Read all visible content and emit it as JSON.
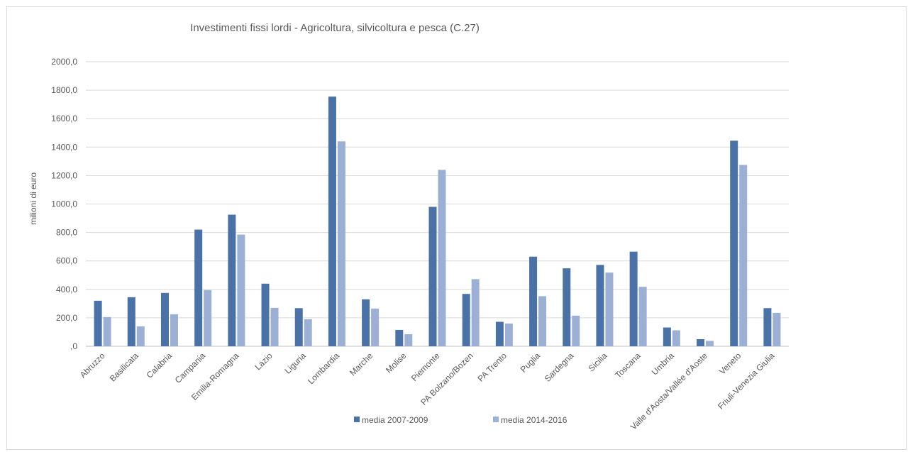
{
  "chart_data": {
    "type": "bar",
    "title": "Investimenti fissi lordi - Agricoltura, silvicoltura e pesca (C.27)",
    "xlabel": "",
    "ylabel": "milioni di euro",
    "ylim": [
      0,
      2000
    ],
    "yticks": [
      "2000,0",
      "1800,0",
      "1600,0",
      "1400,0",
      "1200,0",
      "1000,0",
      "800,0",
      "600,0",
      "400,0",
      "200,0",
      ",0"
    ],
    "grid": true,
    "legend_position": "bottom",
    "categories": [
      "Abruzzo",
      "Basilicata",
      "Calabria",
      "Campania",
      "Emilia-Romagna",
      "Lazio",
      "Liguria",
      "Lombardia",
      "Marche",
      "Molise",
      "Piemonte",
      "PA Bolzano/Bozen",
      "PA Trento",
      "Puglia",
      "Sardegna",
      "Sicilia",
      "Toscana",
      "Umbria",
      "Valle d'Aosta/Vallée d'Aoste",
      "Veneto",
      "Friuli-Venezia Giulia"
    ],
    "series": [
      {
        "name": "media 2007-2009",
        "color": "#4a72a6",
        "values": [
          320,
          345,
          375,
          820,
          925,
          440,
          268,
          1755,
          330,
          115,
          980,
          368,
          172,
          630,
          548,
          572,
          665,
          132,
          50,
          1445,
          268
        ]
      },
      {
        "name": "media 2014-2016",
        "color": "#9bb0d4",
        "values": [
          205,
          140,
          225,
          395,
          785,
          270,
          190,
          1440,
          265,
          85,
          1240,
          472,
          160,
          352,
          215,
          518,
          418,
          112,
          38,
          1275,
          235
        ]
      }
    ]
  }
}
